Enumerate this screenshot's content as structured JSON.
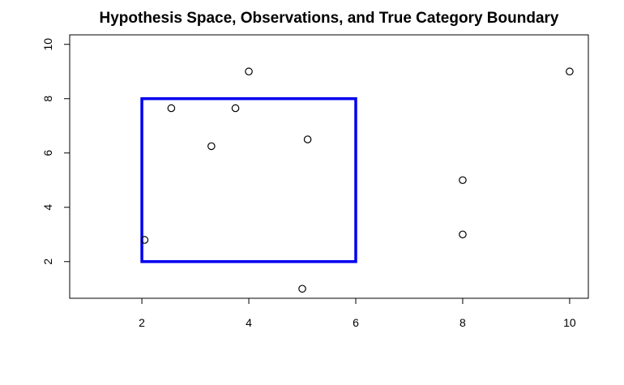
{
  "chart_data": {
    "type": "scatter",
    "title": "Hypothesis Space, Observations, and True Category Boundary",
    "xlabel": "",
    "ylabel": "",
    "xlim": [
      0.65,
      10.35
    ],
    "ylim": [
      0.65,
      10.35
    ],
    "xticks": [
      2,
      4,
      6,
      8,
      10
    ],
    "yticks": [
      2,
      4,
      6,
      8,
      10
    ],
    "grid": false,
    "points": [
      {
        "x": 2.55,
        "y": 7.65
      },
      {
        "x": 3.75,
        "y": 7.65
      },
      {
        "x": 4.0,
        "y": 9.0
      },
      {
        "x": 3.3,
        "y": 6.25
      },
      {
        "x": 5.1,
        "y": 6.5
      },
      {
        "x": 2.05,
        "y": 2.8
      },
      {
        "x": 5.0,
        "y": 1.0
      },
      {
        "x": 8.0,
        "y": 5.0
      },
      {
        "x": 8.0,
        "y": 3.0
      },
      {
        "x": 10.0,
        "y": 9.0
      }
    ],
    "boundary": {
      "x_min": 2,
      "x_max": 6,
      "y_min": 2,
      "y_max": 8,
      "color": "#0000ee"
    },
    "point_color": "#000000"
  }
}
